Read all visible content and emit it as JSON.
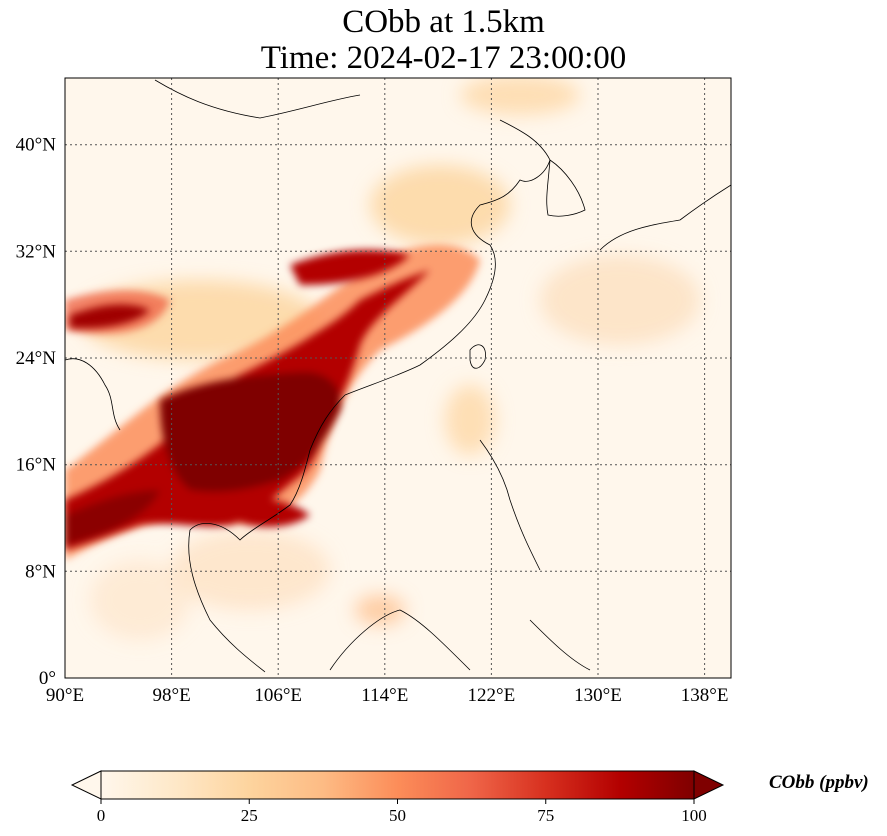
{
  "title_line1": "CObb at 1.5km",
  "title_line2": "Time: 2024-02-17 23:00:00",
  "lon_ticks": [
    "90°E",
    "98°E",
    "106°E",
    "114°E",
    "122°E",
    "130°E",
    "138°E"
  ],
  "lat_ticks": [
    "0°",
    "8°N",
    "16°N",
    "24°N",
    "32°N",
    "40°N"
  ],
  "colorbar": {
    "title": "CObb (ppbv)",
    "tick_labels": [
      "0",
      "25",
      "50",
      "75",
      "100"
    ],
    "range": [
      0,
      100
    ],
    "colormap": "OrRd",
    "extend": "both"
  },
  "map": {
    "lon_range": [
      90,
      140
    ],
    "lat_range": [
      0,
      45
    ],
    "gridlines": "dotted",
    "colors": {
      "low": "#fff7ec",
      "mid": "#fdbb84",
      "high": "#7f0000",
      "coast": "#000000",
      "grid": "#555555"
    }
  }
}
